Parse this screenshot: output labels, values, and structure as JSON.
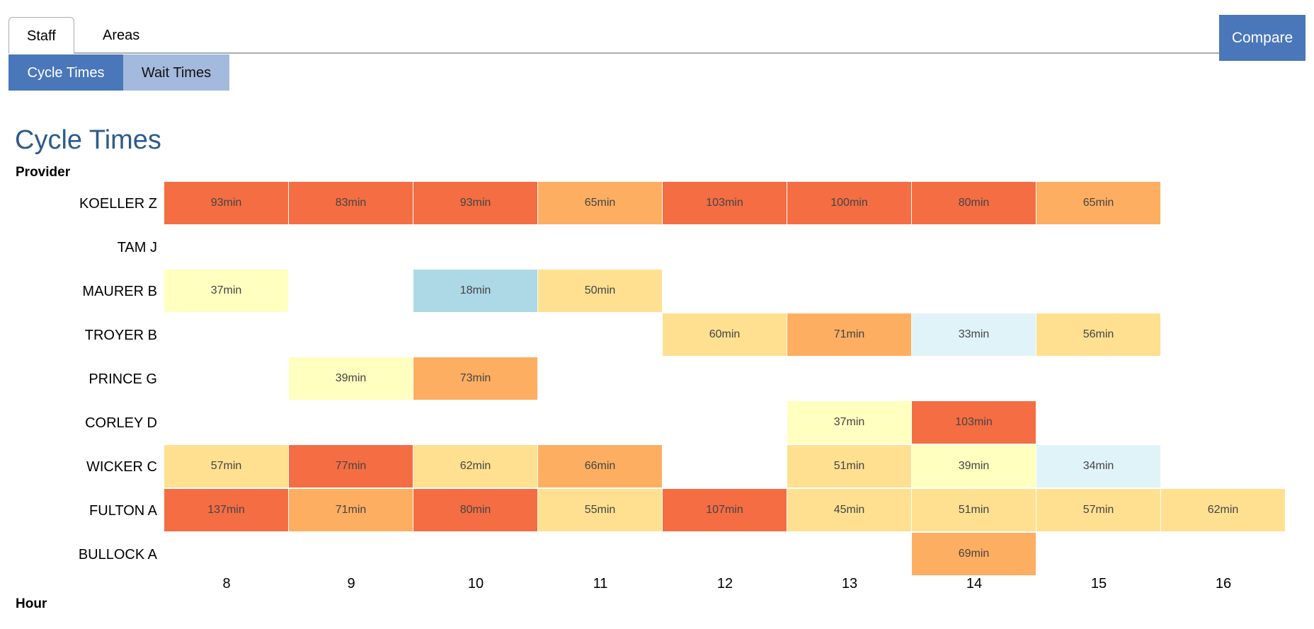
{
  "tabs": {
    "staff": "Staff",
    "areas": "Areas"
  },
  "compare_label": "Compare",
  "subtabs": {
    "cycle": "Cycle Times",
    "wait": "Wait Times"
  },
  "page_title": "Cycle Times",
  "colors": {
    "accent": "#4a76ba",
    "subtab_inactive": "#a3b9dd",
    "title": "#2c5b8a"
  },
  "chart_data": {
    "type": "heatmap",
    "ylabel": "Provider",
    "xlabel": "Hour",
    "x": [
      "8",
      "9",
      "10",
      "11",
      "12",
      "13",
      "14",
      "15",
      "16"
    ],
    "providers": [
      "KOELLER Z",
      "TAM J",
      "MAURER B",
      "TROYER B",
      "PRINCE G",
      "CORLEY D",
      "WICKER C",
      "FULTON A",
      "BULLOCK A"
    ],
    "unit_suffix": "min",
    "values": [
      [
        93,
        83,
        93,
        65,
        103,
        100,
        80,
        65,
        null
      ],
      [
        null,
        null,
        null,
        null,
        null,
        null,
        null,
        null,
        null
      ],
      [
        37,
        null,
        18,
        50,
        null,
        null,
        null,
        null,
        null
      ],
      [
        null,
        null,
        null,
        null,
        60,
        71,
        33,
        56,
        null
      ],
      [
        null,
        39,
        73,
        null,
        null,
        null,
        null,
        null,
        null
      ],
      [
        null,
        null,
        null,
        null,
        null,
        37,
        103,
        null,
        null
      ],
      [
        57,
        77,
        62,
        66,
        null,
        51,
        39,
        34,
        null
      ],
      [
        137,
        71,
        80,
        55,
        107,
        45,
        51,
        57,
        62
      ],
      [
        null,
        null,
        null,
        null,
        null,
        null,
        69,
        null,
        null
      ]
    ],
    "color_scale": [
      {
        "min": 0,
        "color": "#add8e6"
      },
      {
        "min": 30,
        "color": "#e0f3f8"
      },
      {
        "min": 35,
        "color": "#ffffbf"
      },
      {
        "min": 45,
        "color": "#fee090"
      },
      {
        "min": 65,
        "color": "#fdae61"
      },
      {
        "min": 75,
        "color": "#f46d43"
      }
    ]
  }
}
